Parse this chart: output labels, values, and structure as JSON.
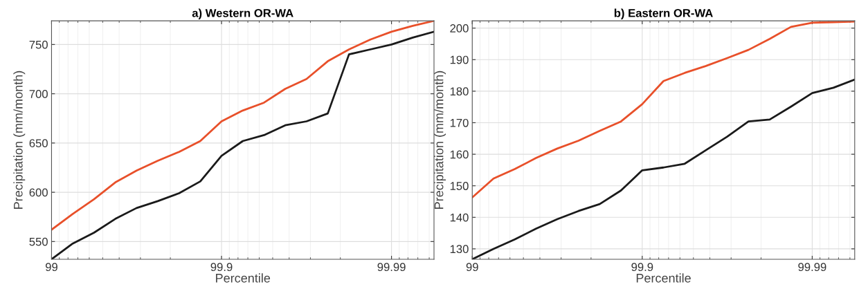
{
  "chart_data": [
    {
      "type": "line",
      "title": "a) Western OR-WA",
      "xlabel": "Percentile",
      "ylabel": "Precipitation (mm/month)",
      "categories": [
        "99",
        null,
        null,
        null,
        null,
        null,
        null,
        null,
        "99.9",
        null,
        null,
        null,
        null,
        null,
        null,
        null,
        "99.99",
        null,
        null
      ],
      "series": [
        {
          "color": "#e8502a",
          "values": [
            562,
            578,
            593,
            610,
            622,
            632,
            641,
            652,
            672,
            683,
            691,
            705,
            715,
            733,
            745,
            755,
            763,
            769,
            774
          ]
        },
        {
          "color": "#1a1a1a",
          "values": [
            532,
            548,
            559,
            573,
            584,
            591,
            599,
            611,
            637,
            652,
            658,
            668,
            672,
            680,
            740,
            745,
            750,
            757,
            763
          ]
        }
      ],
      "ylim": [
        532,
        774
      ],
      "yticks": [
        550,
        600,
        650,
        700,
        750
      ],
      "grid": true
    },
    {
      "type": "line",
      "title": "b) Eastern OR-WA",
      "xlabel": "Percentile",
      "ylabel": "Precipitation (mm/month)",
      "categories": [
        "99",
        null,
        null,
        null,
        null,
        null,
        null,
        null,
        "99.9",
        null,
        null,
        null,
        null,
        null,
        null,
        null,
        "99.99",
        null,
        null
      ],
      "series": [
        {
          "color": "#e8502a",
          "values": [
            146.3,
            152.3,
            155.3,
            158.8,
            161.8,
            164.3,
            167.4,
            170.4,
            175.9,
            183.2,
            185.8,
            188.0,
            190.5,
            193.1,
            196.6,
            200.4,
            201.7,
            201.9,
            202.1
          ]
        },
        {
          "color": "#1a1a1a",
          "values": [
            126.7,
            130.0,
            133.0,
            136.4,
            139.4,
            142.0,
            144.2,
            148.5,
            154.9,
            155.8,
            157.0,
            161.3,
            165.6,
            170.4,
            171.0,
            175.1,
            179.4,
            181.1,
            183.7
          ]
        }
      ],
      "ylim": [
        126.7,
        202.3
      ],
      "yticks": [
        130,
        140,
        150,
        160,
        170,
        180,
        190,
        200
      ],
      "grid": true
    }
  ]
}
